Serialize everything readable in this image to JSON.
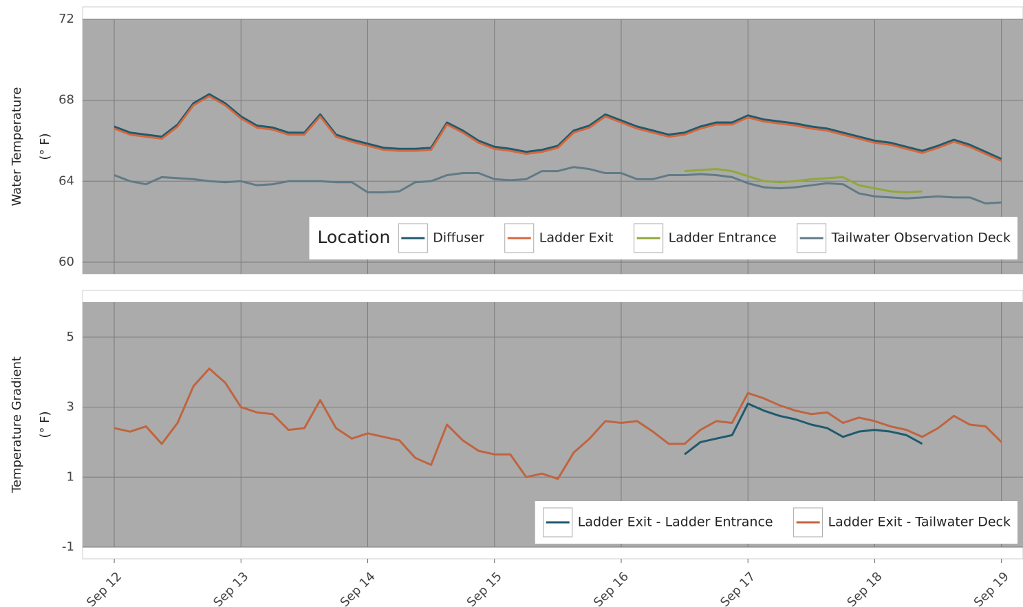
{
  "chart_data": [
    {
      "type": "line",
      "ylabel": [
        "Water Temperature",
        "(° F)"
      ],
      "legend_title": "Location",
      "legend": "bottom-right",
      "grid": true,
      "xlim": [
        11.75,
        19.17
      ],
      "xticks": [
        12,
        13,
        14,
        15,
        16,
        17,
        18,
        19
      ],
      "ylim": [
        59.42,
        72
      ],
      "yticks": [
        60,
        64,
        68,
        72
      ],
      "x": [
        12,
        12.125,
        12.25,
        12.375,
        12.5,
        12.625,
        12.75,
        12.875,
        13,
        13.125,
        13.25,
        13.375,
        13.5,
        13.625,
        13.75,
        13.875,
        14,
        14.125,
        14.25,
        14.375,
        14.5,
        14.625,
        14.75,
        14.875,
        15,
        15.125,
        15.25,
        15.375,
        15.5,
        15.625,
        15.75,
        15.875,
        16,
        16.125,
        16.25,
        16.375,
        16.5,
        16.625,
        16.75,
        16.875,
        17,
        17.125,
        17.25,
        17.375,
        17.5,
        17.625,
        17.75,
        17.875,
        18,
        18.125,
        18.25,
        18.375,
        18.5,
        18.625,
        18.75,
        18.875,
        19
      ],
      "series": [
        {
          "name": "Diffuser",
          "color": "#1f5a6e",
          "values": [
            66.7,
            66.4,
            66.3,
            66.2,
            66.8,
            67.85,
            68.3,
            67.85,
            67.2,
            66.75,
            66.65,
            66.4,
            66.4,
            67.3,
            66.3,
            66.05,
            65.85,
            65.65,
            65.6,
            65.6,
            65.65,
            66.9,
            66.5,
            66.0,
            65.7,
            65.6,
            65.45,
            65.55,
            65.75,
            66.5,
            66.75,
            67.3,
            67.0,
            66.7,
            66.5,
            66.3,
            66.4,
            66.7,
            66.9,
            66.9,
            67.25,
            67.05,
            66.95,
            66.85,
            66.7,
            66.6,
            66.4,
            66.2,
            66.0,
            65.9,
            65.7,
            65.5,
            65.75,
            66.05,
            65.8,
            65.45,
            65.1
          ]
        },
        {
          "name": "Ladder Exit",
          "color": "#d4683f",
          "values": [
            66.6,
            66.3,
            66.2,
            66.1,
            66.7,
            67.75,
            68.2,
            67.75,
            67.1,
            66.65,
            66.55,
            66.3,
            66.3,
            67.2,
            66.2,
            65.95,
            65.75,
            65.55,
            65.5,
            65.5,
            65.55,
            66.8,
            66.4,
            65.9,
            65.6,
            65.5,
            65.35,
            65.45,
            65.65,
            66.4,
            66.65,
            67.2,
            66.9,
            66.6,
            66.4,
            66.2,
            66.3,
            66.6,
            66.8,
            66.8,
            67.15,
            66.95,
            66.85,
            66.75,
            66.6,
            66.5,
            66.3,
            66.1,
            65.9,
            65.8,
            65.6,
            65.4,
            65.65,
            65.95,
            65.7,
            65.35,
            65.0
          ]
        },
        {
          "name": "Ladder Entrance",
          "color": "#8fa83a",
          "values": [
            null,
            null,
            null,
            null,
            null,
            null,
            null,
            null,
            null,
            null,
            null,
            null,
            null,
            null,
            null,
            null,
            null,
            null,
            null,
            null,
            null,
            null,
            null,
            null,
            null,
            null,
            null,
            null,
            null,
            null,
            null,
            null,
            null,
            null,
            null,
            null,
            64.5,
            64.55,
            64.6,
            64.5,
            64.25,
            64.0,
            63.95,
            64.0,
            64.1,
            64.15,
            64.2,
            63.8,
            63.65,
            63.5,
            63.45,
            63.5,
            null,
            null,
            null,
            null,
            null
          ]
        },
        {
          "name": "Tailwater Observation Deck",
          "color": "#607b86",
          "values": [
            64.3,
            64.0,
            63.85,
            64.2,
            64.15,
            64.1,
            64.0,
            63.95,
            64.0,
            63.8,
            63.85,
            64.0,
            64.0,
            64.0,
            63.95,
            63.95,
            63.45,
            63.45,
            63.5,
            63.95,
            64.0,
            64.3,
            64.4,
            64.4,
            64.1,
            64.05,
            64.1,
            64.5,
            64.5,
            64.7,
            64.6,
            64.4,
            64.4,
            64.1,
            64.1,
            64.3,
            64.3,
            64.35,
            64.3,
            64.2,
            63.9,
            63.7,
            63.65,
            63.7,
            63.8,
            63.9,
            63.85,
            63.4,
            63.25,
            63.2,
            63.15,
            63.2,
            63.25,
            63.2,
            63.2,
            62.9,
            62.95
          ]
        }
      ]
    },
    {
      "type": "line",
      "ylabel": [
        "Temperature Gradient",
        "(° F)"
      ],
      "legend": "bottom-right",
      "grid": true,
      "xlim": [
        11.75,
        19.17
      ],
      "xticks": [
        {
          "value": 12,
          "label": "Sep 12"
        },
        {
          "value": 13,
          "label": "Sep 13"
        },
        {
          "value": 14,
          "label": "Sep 14"
        },
        {
          "value": 15,
          "label": "Sep 15"
        },
        {
          "value": 16,
          "label": "Sep 16"
        },
        {
          "value": 17,
          "label": "Sep 17"
        },
        {
          "value": 18,
          "label": "Sep 18"
        },
        {
          "value": 19,
          "label": "Sep 19"
        }
      ],
      "ylim": [
        -1,
        6
      ],
      "yticks": [
        -1,
        1,
        3,
        5
      ],
      "x": [
        12,
        12.125,
        12.25,
        12.375,
        12.5,
        12.625,
        12.75,
        12.875,
        13,
        13.125,
        13.25,
        13.375,
        13.5,
        13.625,
        13.75,
        13.875,
        14,
        14.125,
        14.25,
        14.375,
        14.5,
        14.625,
        14.75,
        14.875,
        15,
        15.125,
        15.25,
        15.375,
        15.5,
        15.625,
        15.75,
        15.875,
        16,
        16.125,
        16.25,
        16.375,
        16.5,
        16.625,
        16.75,
        16.875,
        17,
        17.125,
        17.25,
        17.375,
        17.5,
        17.625,
        17.75,
        17.875,
        18,
        18.125,
        18.25,
        18.375,
        18.5,
        18.625,
        18.75,
        18.875,
        19
      ],
      "series": [
        {
          "name": "Ladder Exit - Ladder Entrance",
          "color": "#1f5a6e",
          "values": [
            null,
            null,
            null,
            null,
            null,
            null,
            null,
            null,
            null,
            null,
            null,
            null,
            null,
            null,
            null,
            null,
            null,
            null,
            null,
            null,
            null,
            null,
            null,
            null,
            null,
            null,
            null,
            null,
            null,
            null,
            null,
            null,
            null,
            null,
            null,
            null,
            1.65,
            2.0,
            2.1,
            2.2,
            3.1,
            2.9,
            2.75,
            2.65,
            2.5,
            2.4,
            2.15,
            2.3,
            2.35,
            2.3,
            2.2,
            1.95,
            null,
            null,
            null,
            null,
            null
          ]
        },
        {
          "name": "Ladder Exit - Tailwater Deck",
          "color": "#c0643f",
          "values": [
            2.4,
            2.3,
            2.45,
            1.95,
            2.55,
            3.6,
            4.1,
            3.7,
            3.0,
            2.85,
            2.8,
            2.35,
            2.4,
            3.2,
            2.4,
            2.1,
            2.25,
            2.15,
            2.05,
            1.55,
            1.35,
            2.5,
            2.05,
            1.75,
            1.65,
            1.65,
            1.0,
            1.1,
            0.95,
            1.7,
            2.1,
            2.6,
            2.55,
            2.6,
            2.3,
            1.95,
            1.95,
            2.35,
            2.6,
            2.55,
            3.4,
            3.25,
            3.05,
            2.9,
            2.8,
            2.85,
            2.55,
            2.7,
            2.6,
            2.45,
            2.35,
            2.15,
            2.4,
            2.75,
            2.5,
            2.45,
            2.0
          ]
        }
      ]
    }
  ]
}
